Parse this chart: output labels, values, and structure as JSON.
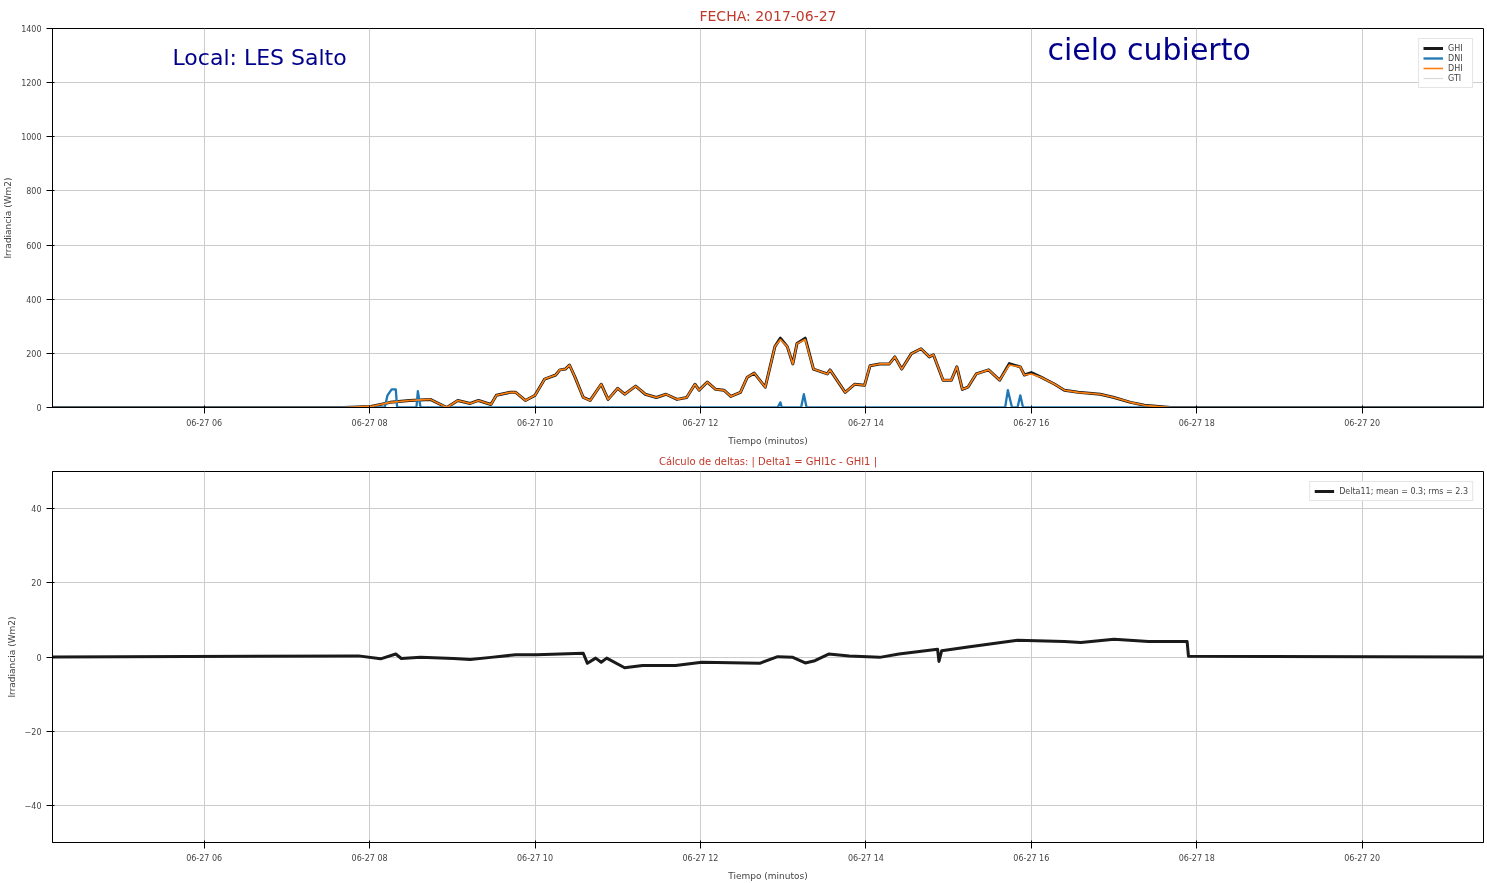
{
  "chart_data": [
    {
      "type": "line",
      "title": "FECHA: 2017-06-27",
      "xlabel": "Tiempo (minutos)",
      "ylabel": "Irradiancia (Wm2)",
      "annotations": [
        "Local: LES Salto",
        "cielo cubierto"
      ],
      "x": [
        "2017-06-27T04:10",
        "2017-06-27T07:41",
        "2017-06-27T08:01",
        "2017-06-27T08:15",
        "2017-06-27T08:29",
        "2017-06-27T08:44",
        "2017-06-27T08:56",
        "2017-06-27T09:04",
        "2017-06-27T09:13",
        "2017-06-27T09:19",
        "2017-06-27T09:28",
        "2017-06-27T09:32",
        "2017-06-27T09:42",
        "2017-06-27T09:46",
        "2017-06-27T09:53",
        "2017-06-27T10:00",
        "2017-06-27T10:07",
        "2017-06-27T10:15",
        "2017-06-27T10:18",
        "2017-06-27T10:22",
        "2017-06-27T10:25",
        "2017-06-27T10:29",
        "2017-06-27T10:35",
        "2017-06-27T10:40",
        "2017-06-27T10:48",
        "2017-06-27T10:53",
        "2017-06-27T11:00",
        "2017-06-27T11:05",
        "2017-06-27T11:13",
        "2017-06-27T11:20",
        "2017-06-27T11:28",
        "2017-06-27T11:35",
        "2017-06-27T11:43",
        "2017-06-27T11:50",
        "2017-06-27T11:56",
        "2017-06-27T11:59",
        "2017-06-27T12:05",
        "2017-06-27T12:11",
        "2017-06-27T12:17",
        "2017-06-27T12:22",
        "2017-06-27T12:29",
        "2017-06-27T12:34",
        "2017-06-27T12:39",
        "2017-06-27T12:43",
        "2017-06-27T12:47",
        "2017-06-27T12:54",
        "2017-06-27T12:58",
        "2017-06-27T13:03",
        "2017-06-27T13:07",
        "2017-06-27T13:10",
        "2017-06-27T13:16",
        "2017-06-27T13:22",
        "2017-06-27T13:32",
        "2017-06-27T13:34",
        "2017-06-27T13:45",
        "2017-06-27T13:52",
        "2017-06-27T13:59",
        "2017-06-27T14:03",
        "2017-06-27T14:10",
        "2017-06-27T14:17",
        "2017-06-27T14:21",
        "2017-06-27T14:26",
        "2017-06-27T14:33",
        "2017-06-27T14:40",
        "2017-06-27T14:46",
        "2017-06-27T14:49",
        "2017-06-27T14:56",
        "2017-06-27T15:02",
        "2017-06-27T15:06",
        "2017-06-27T15:10",
        "2017-06-27T15:14",
        "2017-06-27T15:20",
        "2017-06-27T15:29",
        "2017-06-27T15:37",
        "2017-06-27T15:44",
        "2017-06-27T15:52",
        "2017-06-27T15:55",
        "2017-06-27T16:00",
        "2017-06-27T16:07",
        "2017-06-27T16:17",
        "2017-06-27T16:24",
        "2017-06-27T16:34",
        "2017-06-27T16:50",
        "2017-06-27T17:00",
        "2017-06-27T17:12",
        "2017-06-27T17:22",
        "2017-06-27T17:41",
        "2017-06-27T21:28"
      ],
      "series": [
        {
          "name": "GHI",
          "color": "#1a1a1a",
          "values": [
            0,
            0,
            4,
            19,
            26,
            30,
            0,
            26,
            15,
            26,
            11,
            45,
            56,
            56,
            26,
            45,
            105,
            120,
            139,
            142,
            157,
            112,
            37,
            26,
            86,
            30,
            71,
            49,
            79,
            49,
            37,
            49,
            30,
            37,
            86,
            64,
            94,
            67,
            64,
            41,
            56,
            112,
            127,
            101,
            75,
            225,
            256,
            225,
            161,
            236,
            256,
            142,
            124,
            139,
            56,
            86,
            82,
            154,
            161,
            161,
            187,
            142,
            199,
            217,
            187,
            195,
            101,
            101,
            150,
            67,
            75,
            124,
            139,
            101,
            162,
            150,
            120,
            129,
            112,
            86,
            64,
            56,
            49,
            37,
            19,
            8,
            0,
            0
          ]
        },
        {
          "name": "DNI",
          "color": "#1f77b4",
          "x": [
            "2017-06-27T04:10",
            "2017-06-27T08:11",
            "2017-06-27T08:13",
            "2017-06-27T08:16",
            "2017-06-27T08:19",
            "2017-06-27T08:20",
            "2017-06-27T08:34",
            "2017-06-27T08:35",
            "2017-06-27T08:37",
            "2017-06-27T12:56",
            "2017-06-27T12:58",
            "2017-06-27T12:59",
            "2017-06-27T13:13",
            "2017-06-27T13:15",
            "2017-06-27T13:17",
            "2017-06-27T15:41",
            "2017-06-27T15:43",
            "2017-06-27T15:46",
            "2017-06-27T15:50",
            "2017-06-27T15:52",
            "2017-06-27T15:54",
            "2017-06-27T21:28"
          ],
          "values": [
            0,
            0,
            45,
            67,
            67,
            0,
            0,
            60,
            0,
            0,
            19,
            0,
            0,
            49,
            0,
            0,
            64,
            0,
            0,
            45,
            0,
            0
          ]
        },
        {
          "name": "DHI",
          "color": "#ff7f0e",
          "values": [
            0,
            0,
            4,
            19,
            26,
            30,
            0,
            26,
            15,
            26,
            11,
            45,
            56,
            56,
            26,
            45,
            105,
            120,
            139,
            142,
            157,
            112,
            37,
            26,
            86,
            30,
            71,
            49,
            79,
            49,
            37,
            49,
            30,
            37,
            86,
            64,
            94,
            67,
            64,
            41,
            56,
            112,
            127,
            101,
            75,
            225,
            251,
            225,
            161,
            236,
            251,
            142,
            124,
            139,
            56,
            86,
            82,
            154,
            161,
            161,
            187,
            142,
            199,
            217,
            187,
            195,
            101,
            101,
            150,
            67,
            75,
            124,
            139,
            101,
            157,
            150,
            120,
            124,
            112,
            86,
            64,
            56,
            49,
            37,
            19,
            8,
            0,
            0
          ]
        },
        {
          "name": "GTI",
          "color": "#d9d9d9",
          "values": [
            null,
            null,
            null,
            null,
            null,
            null,
            null,
            null,
            null,
            null,
            null,
            null,
            null,
            null,
            null,
            null,
            null,
            null,
            null,
            null,
            null,
            null,
            null,
            null,
            null,
            null,
            null,
            null,
            null,
            null,
            null,
            null,
            null,
            null,
            null,
            null,
            null,
            null,
            null,
            null,
            null,
            null,
            null,
            null,
            null,
            null,
            null,
            null,
            null,
            null,
            null,
            null,
            null,
            null,
            null,
            null,
            null,
            null,
            null,
            null,
            null,
            null,
            null,
            null,
            null,
            null,
            null,
            null,
            null,
            null,
            null,
            null,
            null,
            null,
            null,
            null,
            null,
            null,
            null,
            null,
            null,
            null,
            null,
            null,
            null,
            null,
            null,
            null
          ]
        }
      ],
      "xlim": [
        "2017-06-27T04:10",
        "2017-06-27T21:28"
      ],
      "ylim": [
        0,
        1400
      ],
      "xticks": [
        {
          "value": "2017-06-27T06:00",
          "label": "06-27 06"
        },
        {
          "value": "2017-06-27T08:00",
          "label": "06-27 08"
        },
        {
          "value": "2017-06-27T10:00",
          "label": "06-27 10"
        },
        {
          "value": "2017-06-27T12:00",
          "label": "06-27 12"
        },
        {
          "value": "2017-06-27T14:00",
          "label": "06-27 14"
        },
        {
          "value": "2017-06-27T16:00",
          "label": "06-27 16"
        },
        {
          "value": "2017-06-27T18:00",
          "label": "06-27 18"
        },
        {
          "value": "2017-06-27T20:00",
          "label": "06-27 20"
        }
      ],
      "yticks": [
        0,
        200,
        400,
        600,
        800,
        1000,
        1200,
        1400
      ],
      "grid": true,
      "legend": "top right",
      "line_style": "solid"
    },
    {
      "type": "line",
      "title": "Cálculo de deltas: | Delta1 = GHI1c - GHI1 |",
      "xlabel": "Tiempo (minutos)",
      "ylabel": "Irradiancia (Wm2)",
      "x": [
        "2017-06-27T04:10",
        "2017-06-27T07:52",
        "2017-06-27T08:08",
        "2017-06-27T08:19",
        "2017-06-27T08:23",
        "2017-06-27T08:37",
        "2017-06-27T09:01",
        "2017-06-27T09:13",
        "2017-06-27T09:28",
        "2017-06-27T09:46",
        "2017-06-27T10:01",
        "2017-06-27T10:35",
        "2017-06-27T10:38",
        "2017-06-27T10:44",
        "2017-06-27T10:48",
        "2017-06-27T10:52",
        "2017-06-27T11:05",
        "2017-06-27T11:18",
        "2017-06-27T11:42",
        "2017-06-27T12:01",
        "2017-06-27T12:43",
        "2017-06-27T12:56",
        "2017-06-27T13:07",
        "2017-06-27T13:16",
        "2017-06-27T13:23",
        "2017-06-27T13:33",
        "2017-06-27T13:48",
        "2017-06-27T14:10",
        "2017-06-27T14:24",
        "2017-06-27T14:52",
        "2017-06-27T14:53",
        "2017-06-27T14:55",
        "2017-06-27T15:14",
        "2017-06-27T15:50",
        "2017-06-27T16:24",
        "2017-06-27T16:36",
        "2017-06-27T17:00",
        "2017-06-27T17:25",
        "2017-06-27T17:53",
        "2017-06-27T17:54",
        "2017-06-27T21:28"
      ],
      "series": [
        {
          "name": "Delta11; mean = 0.3; rms = 2.3",
          "color": "#1a1a1a",
          "values": [
            0,
            0.3,
            -0.5,
            0.8,
            -0.4,
            -0.1,
            -0.4,
            -0.7,
            -0.1,
            0.6,
            0.6,
            1.0,
            -1.7,
            -0.3,
            -1.4,
            -0.3,
            -2.9,
            -2.3,
            -2.3,
            -1.4,
            -1.7,
            0.1,
            -0.1,
            -1.6,
            -1.0,
            0.8,
            0.3,
            -0.1,
            0.8,
            2.1,
            -1.2,
            1.7,
            2.7,
            4.5,
            4.2,
            3.9,
            4.8,
            4.2,
            4.2,
            0.2,
            0
          ]
        }
      ],
      "xlim": [
        "2017-06-27T04:10",
        "2017-06-27T21:28"
      ],
      "ylim": [
        -50,
        50
      ],
      "xticks": [
        {
          "value": "2017-06-27T06:00",
          "label": "06-27 06"
        },
        {
          "value": "2017-06-27T08:00",
          "label": "06-27 08"
        },
        {
          "value": "2017-06-27T10:00",
          "label": "06-27 10"
        },
        {
          "value": "2017-06-27T12:00",
          "label": "06-27 12"
        },
        {
          "value": "2017-06-27T14:00",
          "label": "06-27 14"
        },
        {
          "value": "2017-06-27T16:00",
          "label": "06-27 16"
        },
        {
          "value": "2017-06-27T18:00",
          "label": "06-27 18"
        },
        {
          "value": "2017-06-27T20:00",
          "label": "06-27 20"
        }
      ],
      "yticks": [
        -40,
        -20,
        0,
        20,
        40
      ],
      "grid": true,
      "legend": "top right",
      "line_style": "solid"
    }
  ]
}
